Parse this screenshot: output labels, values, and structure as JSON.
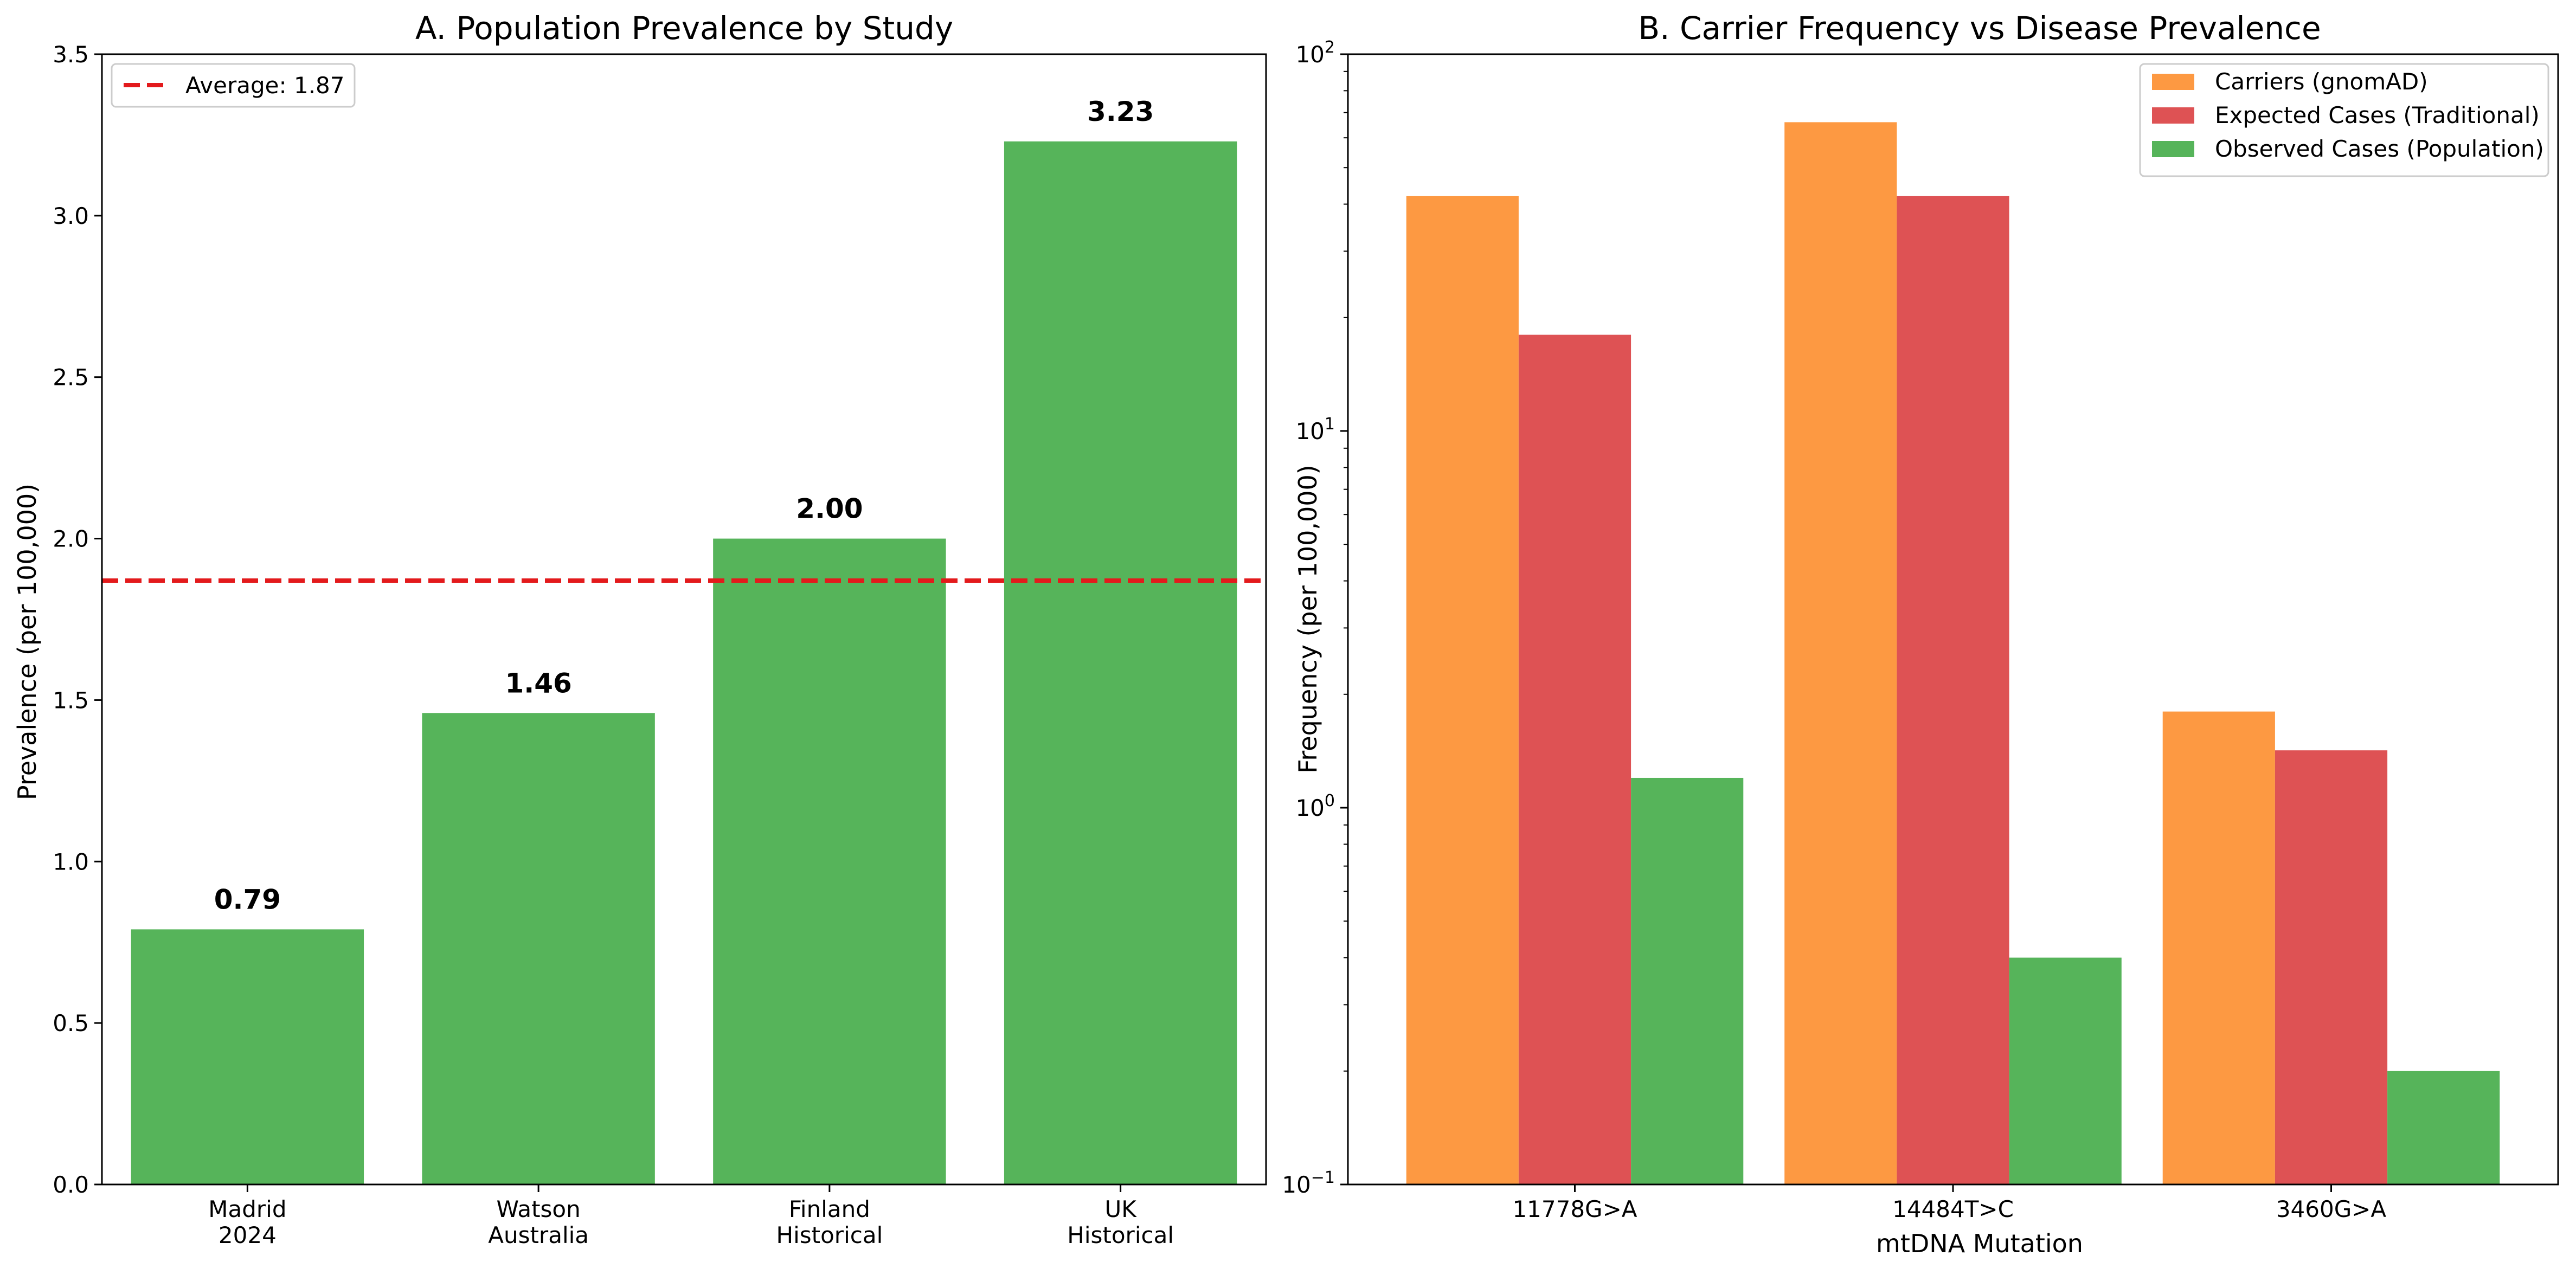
{
  "chart_data": [
    {
      "type": "bar",
      "title": "A. Population Prevalence by Study",
      "xlabel": "",
      "ylabel": "Prevalence (per 100,000)",
      "ylim": [
        0,
        3.5
      ],
      "yticks": [
        0.0,
        0.5,
        1.0,
        1.5,
        2.0,
        2.5,
        3.0,
        3.5
      ],
      "ytick_labels": [
        "0.0",
        "0.5",
        "1.0",
        "1.5",
        "2.0",
        "2.5",
        "3.0",
        "3.5"
      ],
      "grid": false,
      "categories": [
        {
          "line1": "Madrid",
          "line2": "2024"
        },
        {
          "line1": "Watson",
          "line2": "Australia"
        },
        {
          "line1": "Finland",
          "line2": "Historical"
        },
        {
          "line1": "UK",
          "line2": "Historical"
        }
      ],
      "values": [
        0.79,
        1.46,
        2.0,
        3.23
      ],
      "value_labels": [
        "0.79",
        "1.46",
        "2.00",
        "3.23"
      ],
      "bar_color": "#56b45a",
      "reference_line": {
        "value": 1.87,
        "label": "Average: 1.87",
        "color": "#e31a1c",
        "style": "dashed"
      },
      "legend_position": "top-left"
    },
    {
      "type": "bar",
      "title": "B. Carrier Frequency vs Disease Prevalence",
      "xlabel": "mtDNA Mutation",
      "ylabel": "Frequency (per 100,000)",
      "yscale": "log",
      "ylim": [
        0.1,
        100
      ],
      "yticks": [
        0.1,
        1,
        10,
        100
      ],
      "ytick_labels": [
        {
          "base": "10",
          "exp": "−1"
        },
        {
          "base": "10",
          "exp": "0"
        },
        {
          "base": "10",
          "exp": "1"
        },
        {
          "base": "10",
          "exp": "2"
        }
      ],
      "grid": false,
      "categories": [
        "11778G>A",
        "14484T>C",
        "3460G>A"
      ],
      "series": [
        {
          "name": "Carriers (gnomAD)",
          "color": "#fd9942",
          "values": [
            42,
            66,
            1.8
          ]
        },
        {
          "name": "Expected Cases (Traditional)",
          "color": "#de5254",
          "values": [
            18,
            42,
            1.42
          ]
        },
        {
          "name": "Observed Cases (Population)",
          "color": "#56b45a",
          "values": [
            1.2,
            0.4,
            0.2
          ]
        }
      ],
      "legend_position": "top-right"
    }
  ]
}
